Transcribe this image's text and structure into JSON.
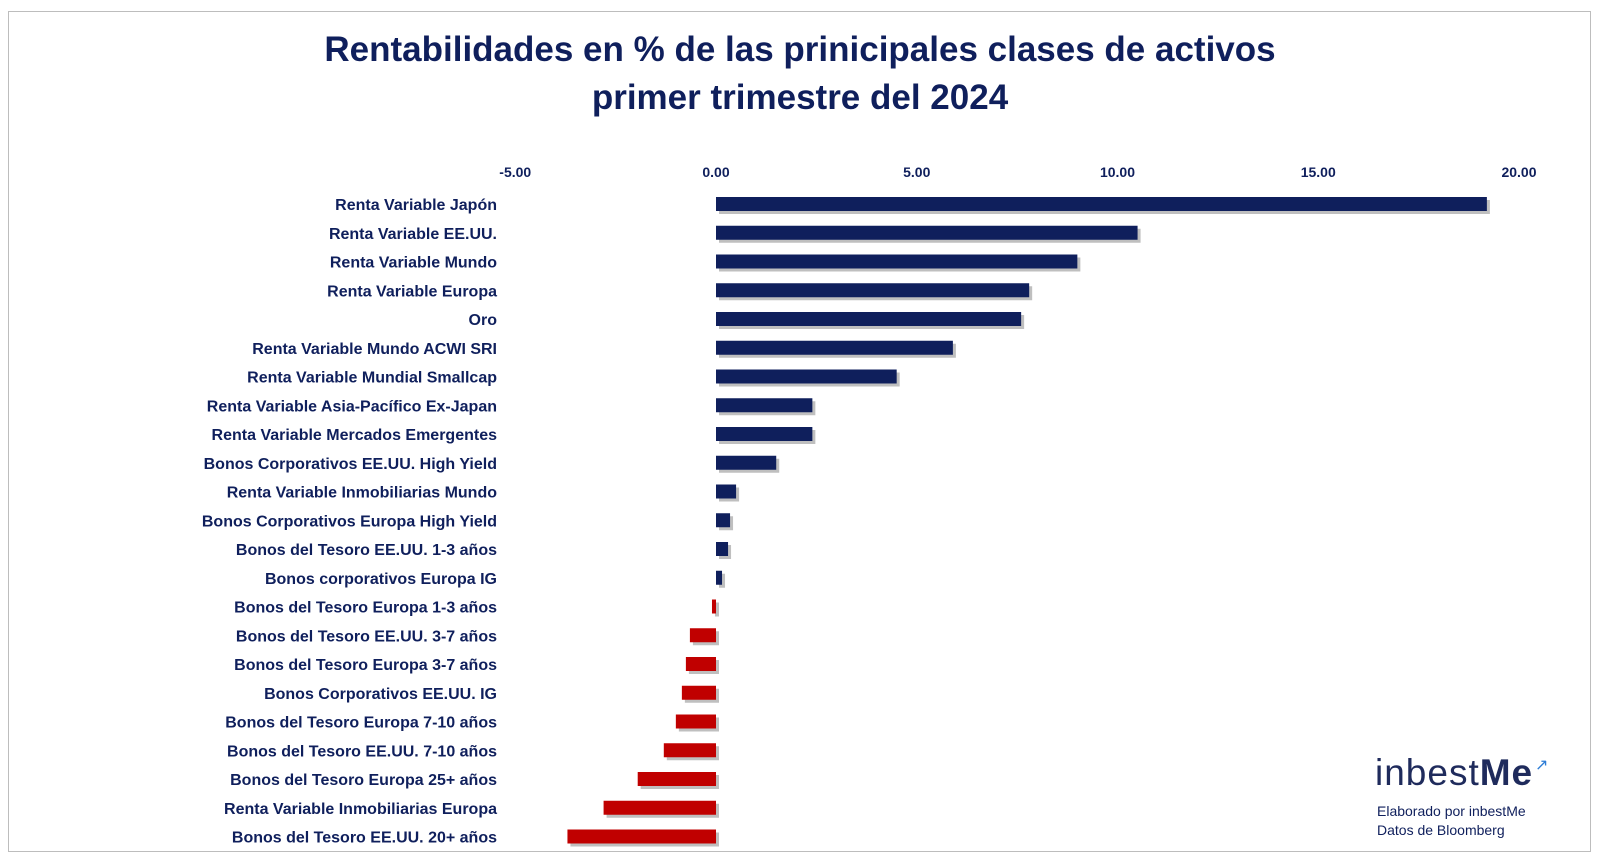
{
  "title_line1": "Rentabilidades en % de las prinicipales clases de activos",
  "title_line2": "primer trimestre del  2024",
  "logo": {
    "text_main": "inbest",
    "text_accent": "Me"
  },
  "credits": {
    "line1": "Elaborado por inbestMe",
    "line2": "Datos de Bloomberg"
  },
  "colors": {
    "positive": "#0f1f5c",
    "negative": "#c00000",
    "text": "#0f1f5c"
  },
  "chart_data": {
    "type": "bar",
    "orientation": "horizontal",
    "xlim": [
      -5,
      20
    ],
    "ticks": [
      "-5.00",
      "0.00",
      "5.00",
      "10.00",
      "15.00",
      "20.00"
    ],
    "tick_values": [
      -5,
      0,
      5,
      10,
      15,
      20
    ],
    "axis_position": "top",
    "grid": false,
    "categories": [
      "Renta Variable Japón",
      "Renta Variable EE.UU.",
      "Renta Variable Mundo",
      "Renta Variable Europa",
      "Oro",
      "Renta Variable Mundo ACWI SRI",
      "Renta Variable Mundial Smallcap",
      "Renta Variable Asia-Pacífico Ex-Japan",
      "Renta Variable Mercados Emergentes",
      "Bonos Corporativos EE.UU. High Yield",
      "Renta Variable Inmobiliarias Mundo",
      "Bonos Corporativos Europa High Yield",
      "Bonos del Tesoro EE.UU. 1-3 años",
      "Bonos corporativos Europa IG",
      "Bonos del Tesoro Europa 1-3 años",
      "Bonos del Tesoro EE.UU. 3-7 años",
      "Bonos del Tesoro Europa 3-7 años",
      "Bonos Corporativos  EE.UU. IG",
      "Bonos del Tesoro Europa 7-10 años",
      "Bonos del Tesoro EE.UU. 7-10 años",
      "Bonos del Tesoro Europa 25+ años",
      "Renta Variable Inmobiliarias Europa",
      "Bonos del Tesoro EE.UU. 20+ años"
    ],
    "values": [
      19.2,
      10.5,
      9.0,
      7.8,
      7.6,
      5.9,
      4.5,
      2.4,
      2.4,
      1.5,
      0.5,
      0.35,
      0.3,
      0.15,
      -0.1,
      -0.65,
      -0.75,
      -0.85,
      -1.0,
      -1.3,
      -1.95,
      -2.8,
      -3.7
    ]
  }
}
